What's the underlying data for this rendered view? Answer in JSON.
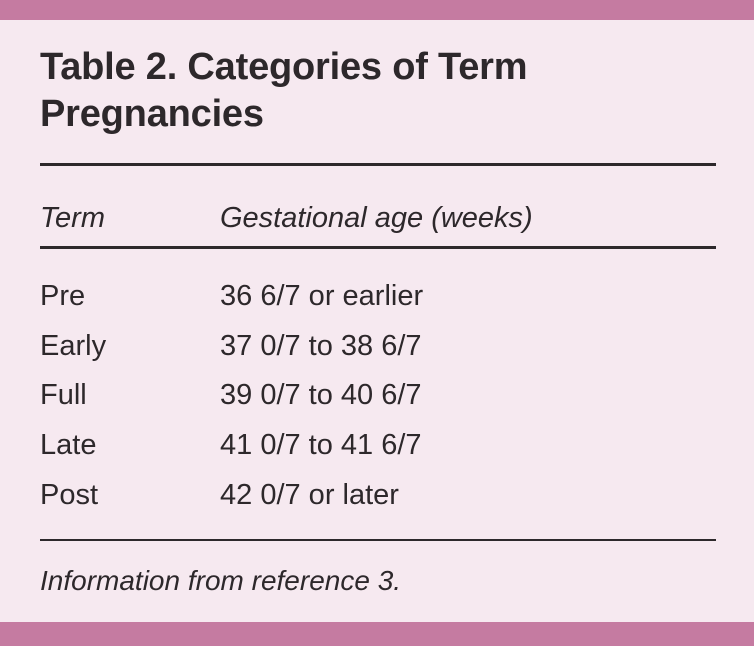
{
  "figure": {
    "title_lines": [
      "Table 2. Categories of Term",
      "Pregnancies"
    ],
    "columns": [
      {
        "label": "Term"
      },
      {
        "label": "Gestational age (weeks)"
      }
    ],
    "rows": [
      {
        "term": "Pre",
        "gestational_age": "36 6/7 or earlier"
      },
      {
        "term": "Early",
        "gestational_age": "37 0/7 to 38 6/7"
      },
      {
        "term": "Full",
        "gestational_age": "39 0/7 to 40 6/7"
      },
      {
        "term": "Late",
        "gestational_age": "41 0/7 to 41 6/7"
      },
      {
        "term": "Post",
        "gestational_age": "42 0/7 or later"
      }
    ],
    "footnote": "Information from reference 3.",
    "colors": {
      "accent_bar": "#c57ba1",
      "background": "#f6e9f0",
      "text": "#2d282b",
      "rule": "#2d282b"
    }
  }
}
